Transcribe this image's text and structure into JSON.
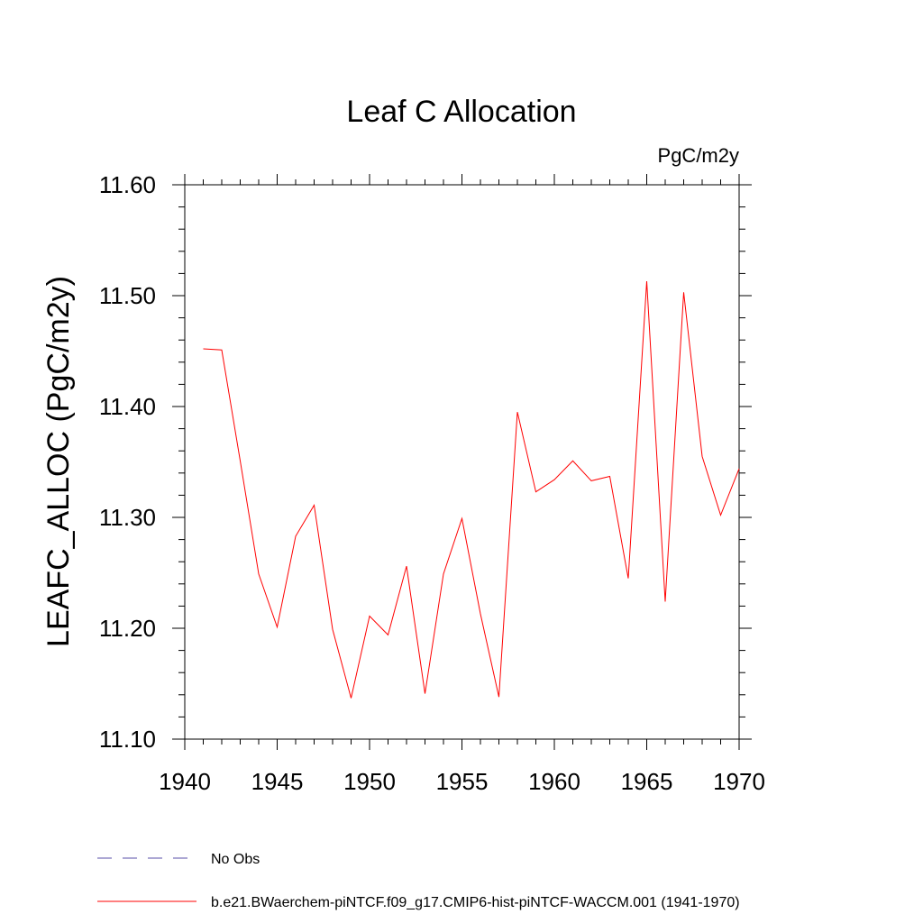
{
  "chart_data": {
    "type": "line",
    "title": "Leaf C Allocation",
    "units": "PgC/m2y",
    "ylabel": "LEAFC_ALLOC  (PgC/m2y)",
    "xlabel": "",
    "xlim": [
      1940,
      1970
    ],
    "ylim": [
      11.1,
      11.6
    ],
    "x_ticks": [
      "1940",
      "1945",
      "1950",
      "1955",
      "1960",
      "1965",
      "1970"
    ],
    "y_ticks": [
      "11.10",
      "11.20",
      "11.30",
      "11.40",
      "11.50",
      "11.60"
    ],
    "grid": false,
    "series": [
      {
        "name": "b.e21.BWaerchem-piNTCF.f09_g17.CMIP6-hist-piNTCF-WACCM.001 (1941-1970)",
        "color": "#ff0000",
        "x": [
          1941,
          1942,
          1943,
          1944,
          1945,
          1946,
          1947,
          1948,
          1949,
          1950,
          1951,
          1952,
          1953,
          1954,
          1955,
          1956,
          1957,
          1958,
          1959,
          1960,
          1961,
          1962,
          1963,
          1964,
          1965,
          1966,
          1967,
          1968,
          1969,
          1970
        ],
        "values": [
          11.452,
          11.451,
          11.351,
          11.249,
          11.201,
          11.283,
          11.311,
          11.199,
          11.137,
          11.211,
          11.194,
          11.256,
          11.141,
          11.249,
          11.299,
          11.213,
          11.138,
          11.395,
          11.323,
          11.334,
          11.351,
          11.333,
          11.337,
          11.245,
          11.513,
          11.224,
          11.503,
          11.355,
          11.302,
          11.344
        ]
      }
    ],
    "legend": {
      "placement": "bottom-left",
      "entries": [
        {
          "label": "No Obs",
          "color": "#5a4fa8",
          "dashed": true
        },
        {
          "label": "b.e21.BWaerchem-piNTCF.f09_g17.CMIP6-hist-piNTCF-WACCM.001 (1941-1970)",
          "color": "#ff0000",
          "dashed": false
        }
      ]
    }
  }
}
